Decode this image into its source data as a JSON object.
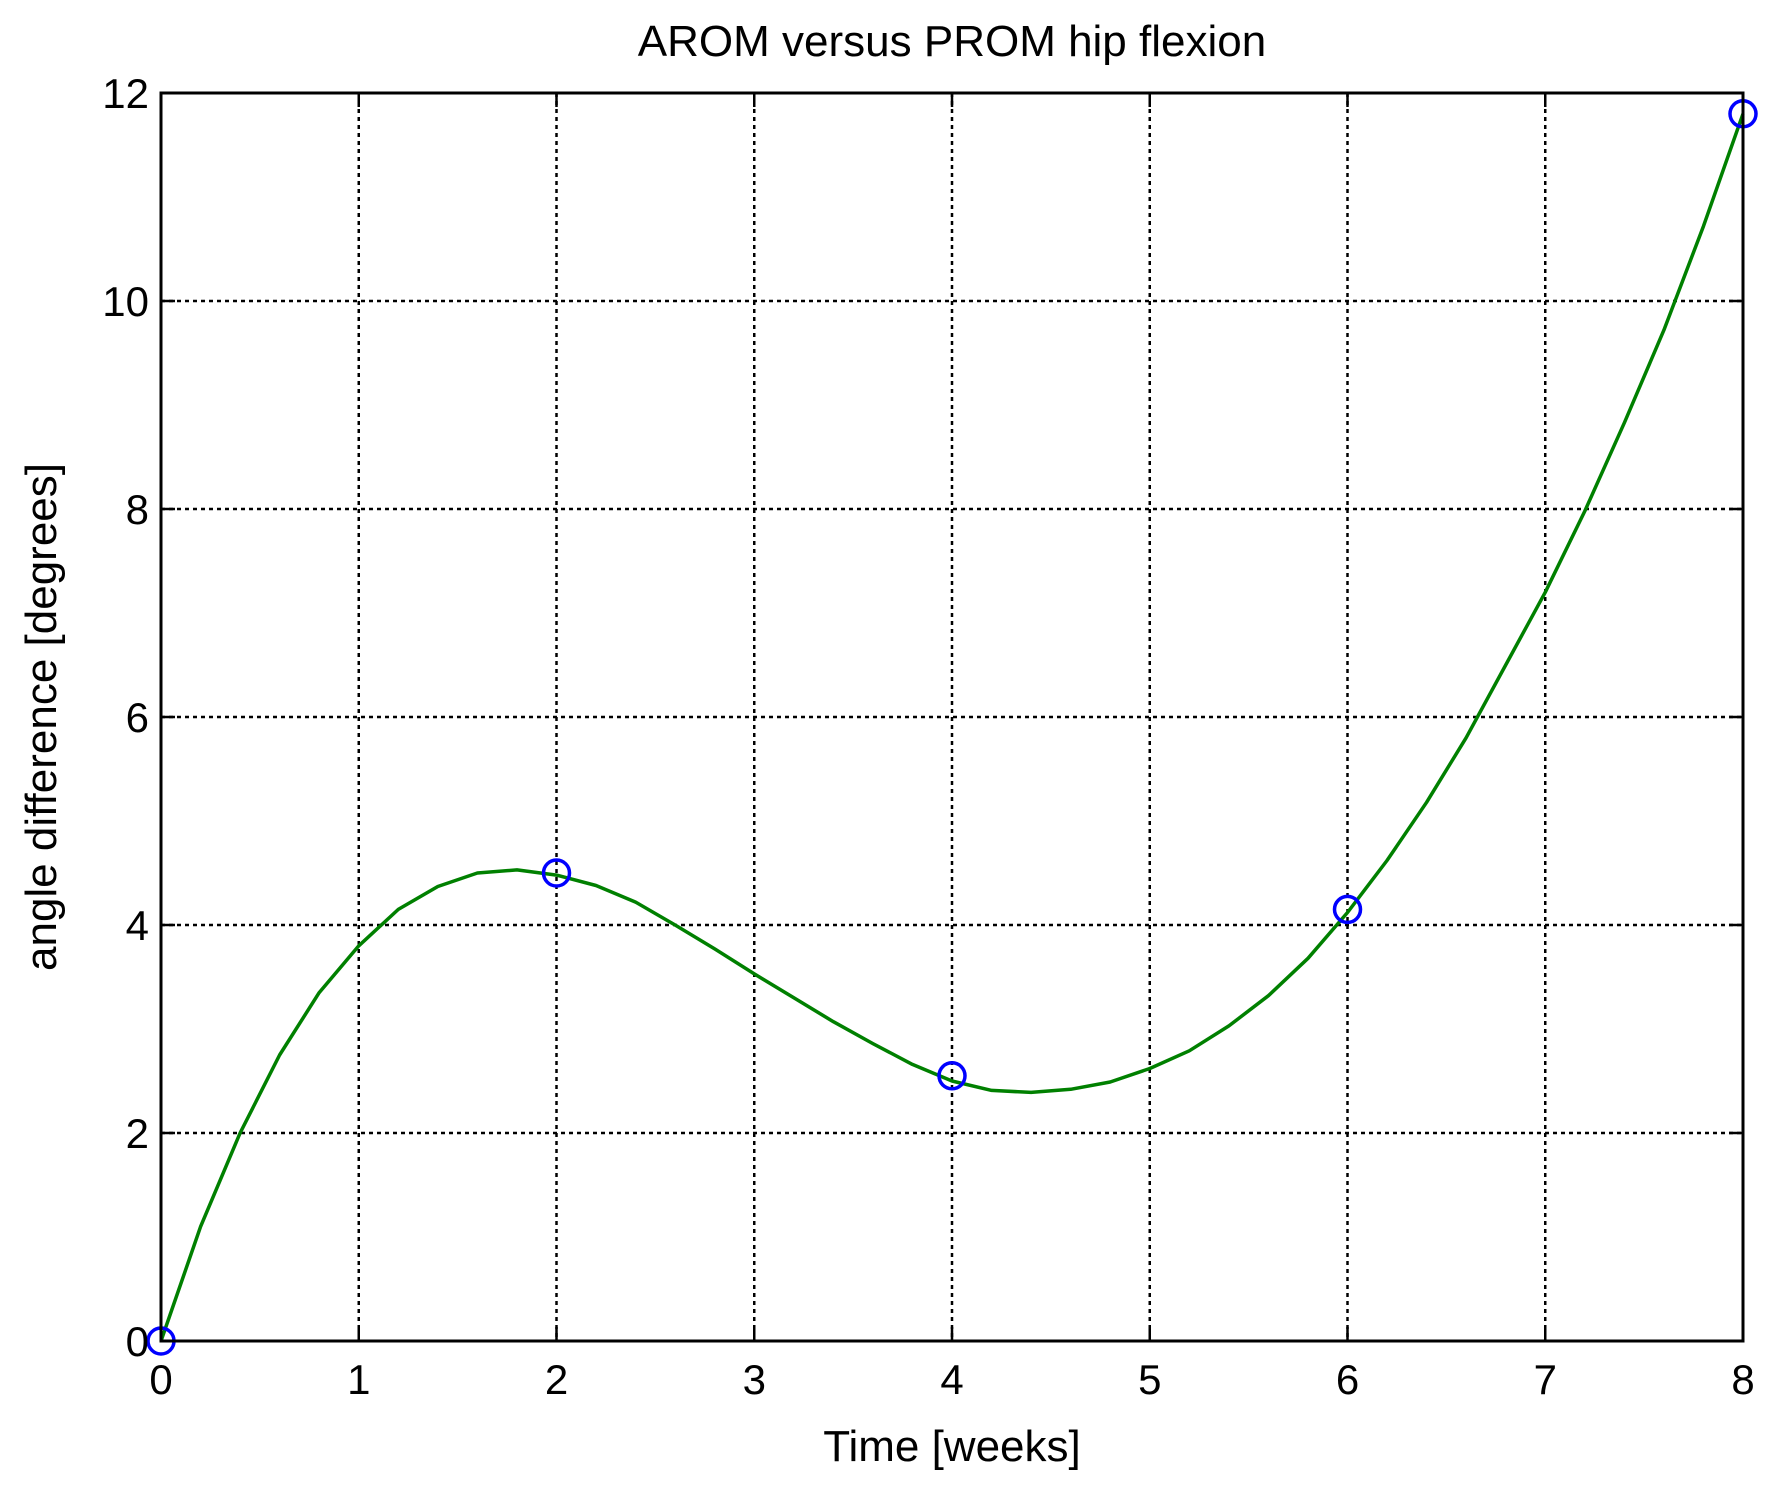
{
  "chart_data": {
    "type": "line",
    "title": "AROM versus PROM hip flexion",
    "xlabel": "Time [weeks]",
    "ylabel": "angle difference [degrees]",
    "xlim": [
      0,
      8
    ],
    "ylim": [
      0,
      12
    ],
    "x_ticks": [
      "0",
      "1",
      "2",
      "3",
      "4",
      "5",
      "6",
      "7",
      "8"
    ],
    "y_ticks": [
      "0",
      "2",
      "4",
      "6",
      "8",
      "10",
      "12"
    ],
    "grid": true,
    "grid_style": "dotted",
    "series": [
      {
        "style": "circle-markers",
        "color": "#0000ff",
        "x": [
          0,
          2,
          4,
          6,
          8
        ],
        "y": [
          0,
          4.5,
          2.55,
          4.15,
          11.8
        ]
      },
      {
        "style": "line",
        "color": "#008000",
        "x": [
          0,
          0.2,
          0.4,
          0.6,
          0.8,
          1.0,
          1.2,
          1.4,
          1.6,
          1.8,
          2.0,
          2.2,
          2.4,
          2.6,
          2.8,
          3.0,
          3.2,
          3.4,
          3.6,
          3.8,
          4.0,
          4.2,
          4.4,
          4.6,
          4.8,
          5.0,
          5.2,
          5.4,
          5.6,
          5.8,
          6.0,
          6.2,
          6.4,
          6.6,
          6.8,
          7.0,
          7.2,
          7.4,
          7.6,
          7.8,
          8.0
        ],
        "y": [
          0,
          1.1,
          2.0,
          2.75,
          3.35,
          3.8,
          4.15,
          4.37,
          4.5,
          4.53,
          4.48,
          4.38,
          4.22,
          4.0,
          3.77,
          3.53,
          3.3,
          3.07,
          2.86,
          2.66,
          2.5,
          2.41,
          2.39,
          2.42,
          2.49,
          2.62,
          2.79,
          3.03,
          3.32,
          3.68,
          4.12,
          4.62,
          5.18,
          5.8,
          6.5,
          7.2,
          7.98,
          8.83,
          9.72,
          10.72,
          11.8
        ]
      }
    ]
  }
}
